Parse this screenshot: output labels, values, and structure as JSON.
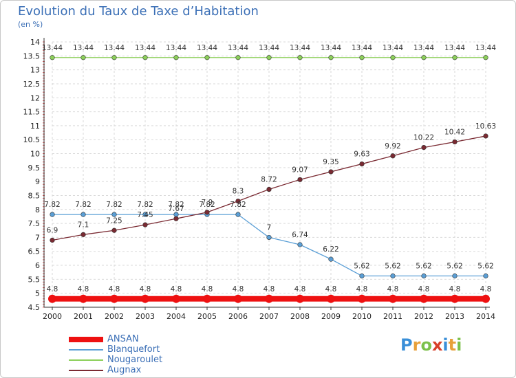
{
  "header": {
    "title": "Evolution du Taux de Taxe d’Habitation",
    "subtitle": "(en %)"
  },
  "logo": {
    "text": "Proxiti",
    "letter_colors": [
      "#3a8fd8",
      "#e8a03a",
      "#7cc04a",
      "#d8402a",
      "#3a8fd8",
      "#e8a03a",
      "#7cc04a"
    ]
  },
  "chart_data": {
    "type": "line",
    "categories": [
      "2000",
      "2001",
      "2002",
      "2003",
      "2004",
      "2005",
      "2006",
      "2007",
      "2008",
      "2009",
      "2010",
      "2011",
      "2012",
      "2013",
      "2014"
    ],
    "ylim": [
      4.5,
      14
    ],
    "yticks": [
      "4.5",
      "5",
      "5.5",
      "6",
      "6.5",
      "7",
      "7.5",
      "8",
      "8.5",
      "9",
      "9.5",
      "10",
      "10.5",
      "11",
      "11.5",
      "12",
      "12.5",
      "13",
      "13.5",
      "14"
    ],
    "grid": true,
    "series": [
      {
        "name": "ANSAN",
        "color": "#ee1111",
        "values": [
          4.8,
          4.8,
          4.8,
          4.8,
          4.8,
          4.8,
          4.8,
          4.8,
          4.8,
          4.8,
          4.8,
          4.8,
          4.8,
          4.8,
          4.8
        ],
        "labels": [
          "4.8",
          "4.8",
          "4.8",
          "4.8",
          "4.8",
          "4.8",
          "4.8",
          "4.8",
          "4.8",
          "4.8",
          "4.8",
          "4.8",
          "4.8",
          "4.8",
          "4.8"
        ]
      },
      {
        "name": "Blanquefort",
        "color": "#5b9fd6",
        "values": [
          7.82,
          7.82,
          7.82,
          7.82,
          7.82,
          7.82,
          7.82,
          7,
          6.74,
          6.22,
          5.62,
          5.62,
          5.62,
          5.62,
          5.62
        ],
        "labels": [
          "7.82",
          "7.82",
          "7.82",
          "7.82",
          "7.82",
          "7.82",
          "7.82",
          "7",
          "6.74",
          "6.22",
          "5.62",
          "5.62",
          "5.62",
          "5.62",
          "5.62"
        ]
      },
      {
        "name": "Nougaroulet",
        "color": "#8ccf5a",
        "values": [
          13.44,
          13.44,
          13.44,
          13.44,
          13.44,
          13.44,
          13.44,
          13.44,
          13.44,
          13.44,
          13.44,
          13.44,
          13.44,
          13.44,
          13.44
        ],
        "labels": [
          "13.44",
          "13.44",
          "13.44",
          "13.44",
          "13.44",
          "13.44",
          "13.44",
          "13.44",
          "13.44",
          "13.44",
          "13.44",
          "13.44",
          "13.44",
          "13.44",
          "13.44"
        ]
      },
      {
        "name": "Augnax",
        "color": "#7a2a32",
        "values": [
          6.9,
          7.1,
          7.25,
          7.45,
          7.67,
          7.9,
          8.3,
          8.72,
          9.07,
          9.35,
          9.63,
          9.92,
          10.22,
          10.42,
          10.63
        ],
        "labels": [
          "6.9",
          "7.1",
          "7.25",
          "7.45",
          "7.67",
          "7.9",
          "8.3",
          "8.72",
          "9.07",
          "9.35",
          "9.63",
          "9.92",
          "10.22",
          "10.42",
          "10.63"
        ]
      }
    ]
  }
}
